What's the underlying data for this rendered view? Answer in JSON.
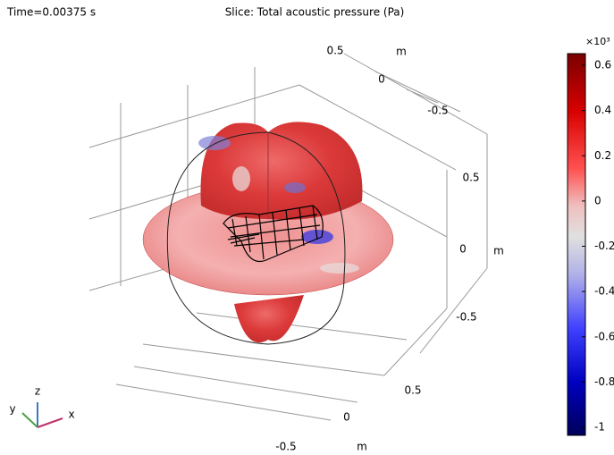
{
  "header": {
    "time": "Time=0.00375 s",
    "title": "Slice: Total acoustic pressure (Pa)"
  },
  "colorbar": {
    "multiplier": "×10³",
    "ticks": [
      "0.6",
      "0.4",
      "0.2",
      "0",
      "-0.2",
      "-0.4",
      "-0.6",
      "-0.8",
      "-1"
    ]
  },
  "axes": {
    "labels": [
      "0.5",
      "m",
      "0",
      "-0.5",
      "0.5",
      "0",
      "m",
      "-0.5",
      "0.5",
      "0",
      "-0.5",
      "m"
    ]
  },
  "triad": {
    "x": "x",
    "y": "y",
    "z": "z"
  }
}
